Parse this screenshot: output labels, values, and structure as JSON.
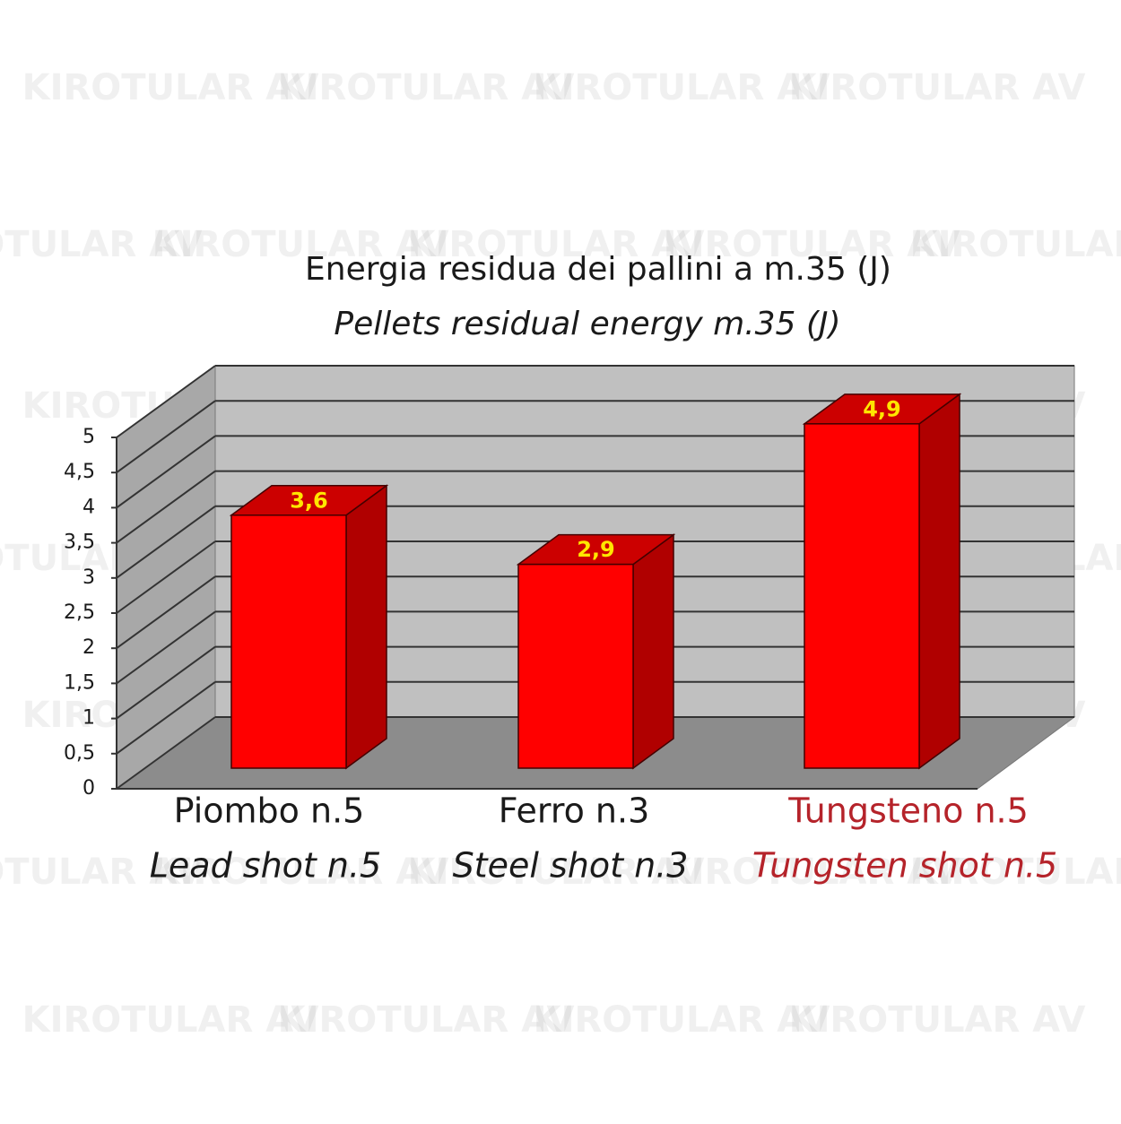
{
  "chart_data": {
    "type": "bar3d",
    "title": "Energia residua dei pallini a m.35 (J)",
    "subtitle": "Pellets residual energy  m.35 (J)",
    "watermark": "KIROTULAR AV",
    "categories": [
      [
        "Piombo n.5",
        "Lead shot n.5"
      ],
      [
        "Ferro n.3",
        "Steel shot n.3"
      ],
      [
        "Tungsteno n.5",
        "Tungsten shot n.5"
      ]
    ],
    "category_label_colors": [
      "#1a1a1a",
      "#1a1a1a",
      "#b5232a"
    ],
    "values": [
      3.6,
      2.9,
      4.9
    ],
    "value_labels": [
      "3,6",
      "2,9",
      "4,9"
    ],
    "color": "#ff0000",
    "ylim": [
      0,
      5
    ],
    "yticks": [
      0,
      {
        "value": 0.5,
        "label": "0,5"
      },
      1,
      {
        "value": 1.5,
        "label": "1,5"
      },
      2,
      {
        "value": 2.5,
        "label": "2,5"
      },
      3,
      {
        "value": 3.5,
        "label": "3,5"
      },
      4,
      {
        "value": 4.5,
        "label": "4,5"
      },
      5
    ],
    "grid": true
  }
}
